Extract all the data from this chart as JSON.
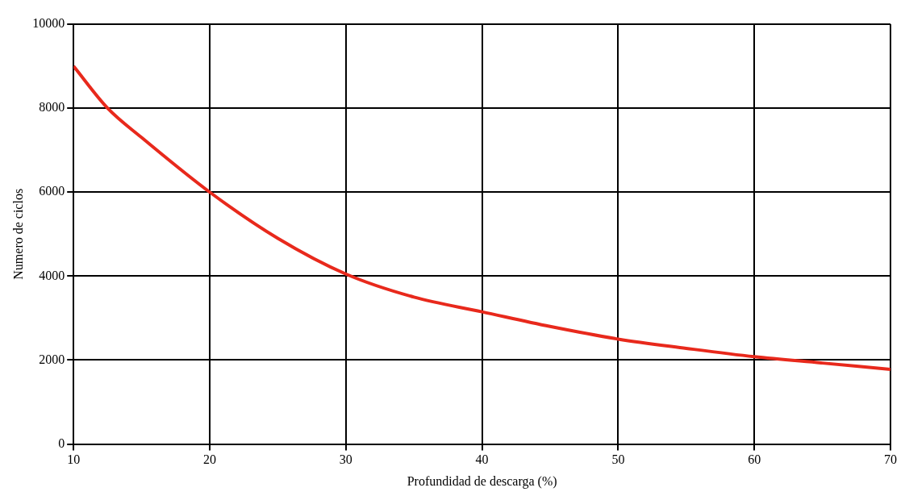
{
  "chart_data": {
    "type": "line",
    "xlabel": "Profundidad de descarga (%)",
    "ylabel": "Numero de ciclos",
    "x": [
      10,
      12.5,
      15,
      20,
      25,
      30,
      35,
      40,
      45,
      50,
      55,
      60,
      65,
      70
    ],
    "series": [
      {
        "color": "#e8291c",
        "values": [
          9000,
          8000,
          7300,
          6000,
          4900,
          4050,
          3500,
          3150,
          2800,
          2500,
          2280,
          2080,
          1930,
          1780
        ]
      }
    ],
    "xlim": [
      10,
      70
    ],
    "xticks": [
      10,
      20,
      30,
      40,
      50,
      60,
      70
    ],
    "ylim": [
      0,
      10000
    ],
    "yticks": [
      0,
      2000,
      4000,
      6000,
      8000,
      10000
    ],
    "grid": true,
    "legend": false,
    "marker": "none",
    "line_style": "solid"
  }
}
